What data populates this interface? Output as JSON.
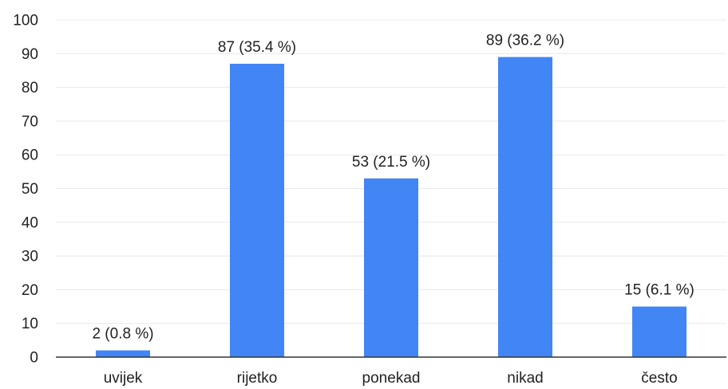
{
  "chart_data": {
    "type": "bar",
    "categories": [
      "uvijek",
      "rijetko",
      "ponekad",
      "nikad",
      "često"
    ],
    "values": [
      2,
      87,
      53,
      89,
      15
    ],
    "data_labels": [
      "2 (0.8 %)",
      "87 (35.4 %)",
      "53 (21.5 %)",
      "89 (36.2 %)",
      "15 (6.1 %)"
    ],
    "ylim": [
      0,
      100
    ],
    "yticks": [
      0,
      10,
      20,
      30,
      40,
      50,
      60,
      70,
      80,
      90,
      100
    ],
    "grid": true,
    "bar_color": "#4285f4",
    "title": "",
    "xlabel": "",
    "ylabel": ""
  }
}
